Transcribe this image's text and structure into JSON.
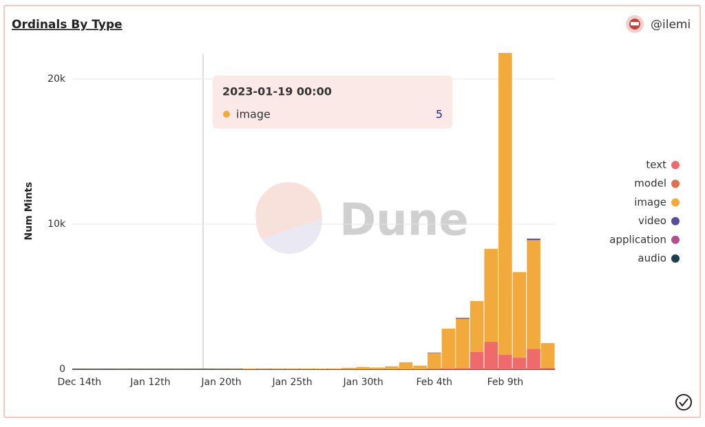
{
  "chart_data": {
    "type": "bar",
    "stacked": true,
    "title": "Ordinals By Type",
    "author": "@ilemi",
    "watermark": "Dune",
    "y_label": "Num Mints",
    "categories": [
      "Dec 14th",
      null,
      null,
      null,
      null,
      "Jan 12th",
      null,
      null,
      null,
      null,
      "Jan 20th",
      null,
      null,
      null,
      null,
      "Jan 25th",
      null,
      null,
      null,
      null,
      "Jan 30th",
      null,
      null,
      null,
      null,
      "Feb 4th",
      null,
      null,
      null,
      null,
      "Feb 9th",
      null,
      null,
      null
    ],
    "series": [
      {
        "name": "text",
        "color": "#ef6a6a",
        "values": [
          0,
          0,
          0,
          0,
          0,
          0,
          0,
          0,
          0,
          0,
          0,
          0,
          0,
          0,
          0,
          0,
          0,
          0,
          0,
          0,
          0,
          0,
          0,
          0,
          0,
          20,
          50,
          80,
          1200,
          1900,
          1000,
          800,
          1400,
          100
        ]
      },
      {
        "name": "model",
        "color": "#e2704a",
        "values": [
          0,
          0,
          0,
          0,
          0,
          0,
          0,
          0,
          0,
          0,
          0,
          0,
          0,
          0,
          0,
          0,
          0,
          0,
          0,
          0,
          0,
          0,
          0,
          0,
          0,
          0,
          0,
          0,
          0,
          0,
          0,
          0,
          0,
          0
        ]
      },
      {
        "name": "image",
        "color": "#f3aa3c",
        "values": [
          2,
          3,
          2,
          4,
          3,
          5,
          4,
          6,
          5,
          5,
          8,
          10,
          40,
          20,
          25,
          30,
          35,
          45,
          50,
          100,
          150,
          120,
          200,
          480,
          250,
          1100,
          2750,
          3400,
          3500,
          6400,
          20800,
          5900,
          7500,
          1700
        ]
      },
      {
        "name": "video",
        "color": "#574d9b",
        "values": [
          0,
          0,
          0,
          0,
          0,
          0,
          0,
          0,
          0,
          0,
          0,
          0,
          0,
          0,
          0,
          0,
          0,
          0,
          0,
          0,
          0,
          0,
          0,
          0,
          0,
          30,
          0,
          60,
          0,
          0,
          0,
          0,
          100,
          0
        ]
      },
      {
        "name": "application",
        "color": "#b54f8b",
        "values": [
          0,
          0,
          0,
          0,
          0,
          0,
          0,
          0,
          0,
          0,
          0,
          0,
          0,
          0,
          0,
          0,
          0,
          0,
          0,
          0,
          0,
          0,
          0,
          0,
          0,
          0,
          0,
          0,
          0,
          0,
          0,
          0,
          0,
          0
        ]
      },
      {
        "name": "audio",
        "color": "#1c3e51",
        "values": [
          0,
          0,
          0,
          0,
          0,
          0,
          0,
          0,
          0,
          0,
          0,
          0,
          0,
          0,
          0,
          0,
          0,
          0,
          0,
          0,
          0,
          0,
          0,
          0,
          0,
          0,
          0,
          0,
          0,
          0,
          0,
          0,
          0,
          0
        ]
      }
    ],
    "ylim": [
      0,
      21750
    ],
    "yticks": [
      0,
      {
        "value": 10000,
        "label": "10k"
      },
      {
        "value": 20000,
        "label": "20k"
      }
    ],
    "grid": true,
    "legend": "right",
    "tooltip": {
      "title": "2023-01-19 00:00",
      "series": "image",
      "value": 5
    }
  }
}
